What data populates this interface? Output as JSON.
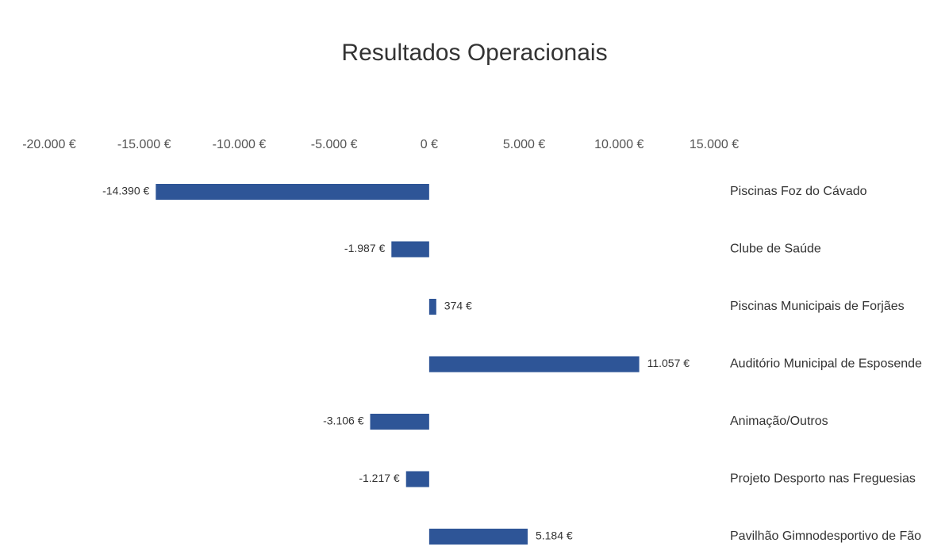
{
  "chart_data": {
    "type": "barh",
    "title": "Resultados Operacionais",
    "categories": [
      "Piscinas Foz do Cávado",
      "Clube de Saúde",
      "Piscinas Municipais de Forjães",
      "Auditório Municipal de Esposende",
      "Animação/Outros",
      "Projeto Desporto nas Freguesias",
      "Pavilhão Gimnodesportivo de Fão"
    ],
    "values": [
      -14390,
      -1987,
      374,
      11057,
      -3106,
      -1217,
      5184
    ],
    "value_labels": [
      "-14.390 €",
      "-1.987 €",
      "374 €",
      "11.057 €",
      "-3.106 €",
      "-1.217 €",
      "5.184 €"
    ],
    "color": "#2e5597",
    "xlim": [
      -20000,
      15000
    ],
    "xticks": [
      {
        "value": -20000,
        "label": "-20.000 €"
      },
      {
        "value": -15000,
        "label": "-15.000 €"
      },
      {
        "value": -10000,
        "label": "-10.000 €"
      },
      {
        "value": -5000,
        "label": "-5.000 €"
      },
      {
        "value": 0,
        "label": "0 €"
      },
      {
        "value": 5000,
        "label": "5.000 €"
      },
      {
        "value": 10000,
        "label": "10.000 €"
      },
      {
        "value": 15000,
        "label": "15.000 €"
      }
    ],
    "grid": false
  }
}
